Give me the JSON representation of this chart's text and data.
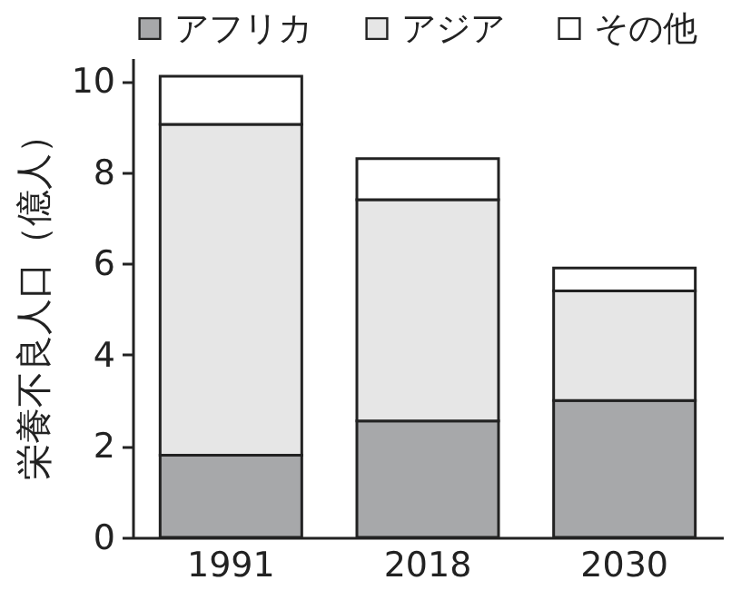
{
  "chart_data": {
    "type": "bar",
    "stacked": true,
    "ylabel": "栄養不良人口（億人）",
    "categories": [
      "1991",
      "2018",
      "2030"
    ],
    "series": [
      {
        "name": "アフリカ",
        "color": "#a7a8aa",
        "values": [
          1.8,
          2.55,
          3.0
        ]
      },
      {
        "name": "アジア",
        "color": "#e6e6e6",
        "values": [
          7.25,
          4.85,
          2.4
        ]
      },
      {
        "name": "その他",
        "color": "#ffffff",
        "values": [
          1.05,
          0.9,
          0.5
        ]
      }
    ],
    "ylim": [
      0,
      10.5
    ],
    "yticks": [
      0,
      2,
      4,
      6,
      8,
      10
    ],
    "grid": false,
    "legend": "top"
  }
}
